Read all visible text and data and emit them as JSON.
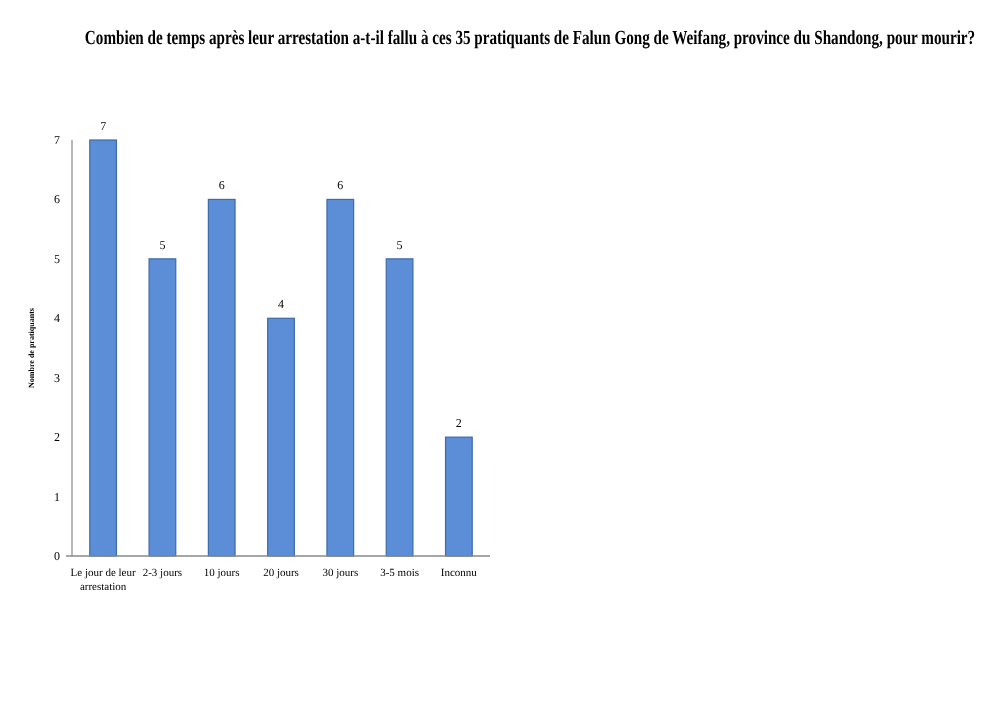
{
  "chart_data": {
    "type": "bar",
    "title": "Combien de temps après leur arrestation a-t-il fallu à ces 35 pratiquants de Falun Gong de Weifang, province du Shandong, pour mourir?",
    "ylabel": "Nombre de pratiquants",
    "categories": [
      "Le jour de leur arrestation",
      "2-3 jours",
      "10 jours",
      "20 jours",
      "30 jours",
      "3-5 mois",
      "Inconnu"
    ],
    "values": [
      7,
      5,
      6,
      4,
      6,
      5,
      2
    ],
    "color": "#5b8ed6",
    "ylim": [
      0,
      7
    ],
    "yticks": [
      0,
      1,
      2,
      3,
      4,
      5,
      6,
      7
    ],
    "grid": false,
    "data_labels": true
  }
}
